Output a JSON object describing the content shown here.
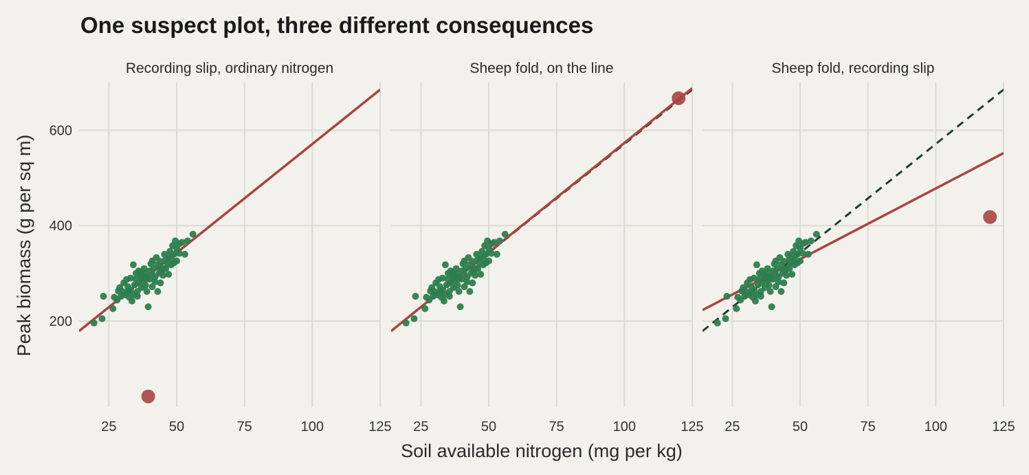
{
  "chart_data": {
    "type": "scatter",
    "title": "One suspect plot, three different consequences",
    "xlabel": "Soil available nitrogen (mg per kg)",
    "ylabel": "Peak biomass (g per sq m)",
    "xlim": [
      14,
      125
    ],
    "ylim": [
      20,
      700
    ],
    "x_ticks": [
      25,
      50,
      75,
      100,
      125
    ],
    "y_ticks": [
      200,
      400,
      600
    ],
    "grid": true,
    "colors": {
      "background": "#f2f1eb",
      "points": "#2e7d4f",
      "suspect_point": "#a84444",
      "fit_line": "#a84444",
      "baseline_line": "#1f3d2c",
      "grid": "#dcdbd3"
    },
    "base_points": [
      [
        19.5,
        196
      ],
      [
        22.5,
        205
      ],
      [
        23,
        252
      ],
      [
        26.5,
        226
      ],
      [
        27,
        250
      ],
      [
        28,
        244
      ],
      [
        28.5,
        263
      ],
      [
        29,
        270
      ],
      [
        29.5,
        252
      ],
      [
        30,
        262
      ],
      [
        30.5,
        280
      ],
      [
        31,
        255
      ],
      [
        31.5,
        287
      ],
      [
        32,
        262
      ],
      [
        32,
        272
      ],
      [
        32.5,
        250
      ],
      [
        33,
        290
      ],
      [
        33,
        265
      ],
      [
        33.5,
        242
      ],
      [
        34,
        255
      ],
      [
        34,
        318
      ],
      [
        34.5,
        276
      ],
      [
        35,
        300
      ],
      [
        35,
        288
      ],
      [
        35.5,
        262
      ],
      [
        35.5,
        252
      ],
      [
        36,
        305
      ],
      [
        36,
        280
      ],
      [
        36.5,
        298
      ],
      [
        37,
        292
      ],
      [
        37,
        270
      ],
      [
        37.5,
        285
      ],
      [
        38,
        310
      ],
      [
        38,
        300
      ],
      [
        38.5,
        275
      ],
      [
        39,
        293
      ],
      [
        39,
        262
      ],
      [
        39.5,
        230
      ],
      [
        40,
        305
      ],
      [
        40,
        288
      ],
      [
        40.5,
        320
      ],
      [
        41,
        298
      ],
      [
        41,
        272
      ],
      [
        41.5,
        310
      ],
      [
        42,
        292
      ],
      [
        42,
        282
      ],
      [
        42.5,
        333
      ],
      [
        43,
        318
      ],
      [
        43,
        262
      ],
      [
        43.5,
        300
      ],
      [
        44,
        325
      ],
      [
        44,
        280
      ],
      [
        44.5,
        305
      ],
      [
        45,
        310
      ],
      [
        45,
        296
      ],
      [
        45.5,
        340
      ],
      [
        46,
        330
      ],
      [
        46,
        310
      ],
      [
        46.5,
        322
      ],
      [
        47,
        335
      ],
      [
        47,
        298
      ],
      [
        47.5,
        346
      ],
      [
        48,
        330
      ],
      [
        48,
        318
      ],
      [
        48.5,
        358
      ],
      [
        49,
        340
      ],
      [
        49,
        322
      ],
      [
        49.5,
        368
      ],
      [
        50,
        352
      ],
      [
        50,
        326
      ],
      [
        51,
        362
      ],
      [
        51,
        342
      ],
      [
        52,
        365
      ],
      [
        53,
        340
      ],
      [
        54,
        368
      ],
      [
        56,
        382
      ],
      [
        37,
        296
      ],
      [
        39,
        288
      ],
      [
        41,
        326
      ],
      [
        44,
        308
      ]
    ],
    "panels": [
      {
        "title": "Recording slip, ordinary nitrogen",
        "suspect": {
          "x": 39.5,
          "y": 42
        },
        "fit": {
          "x": [
            14,
            125
          ],
          "y": [
            179,
            685
          ]
        },
        "baseline": {
          "x": [
            14,
            125
          ],
          "y": [
            179,
            685
          ]
        }
      },
      {
        "title": "Sheep fold, on the line",
        "suspect": {
          "x": 120,
          "y": 667
        },
        "fit": {
          "x": [
            14,
            125
          ],
          "y": [
            179,
            688
          ]
        },
        "baseline": {
          "x": [
            14,
            125
          ],
          "y": [
            179,
            685
          ]
        }
      },
      {
        "title": "Sheep fold, recording slip",
        "suspect": {
          "x": 120,
          "y": 418
        },
        "fit": {
          "x": [
            14,
            125
          ],
          "y": [
            223,
            552
          ]
        },
        "baseline": {
          "x": [
            14,
            125
          ],
          "y": [
            179,
            685
          ]
        }
      }
    ]
  }
}
